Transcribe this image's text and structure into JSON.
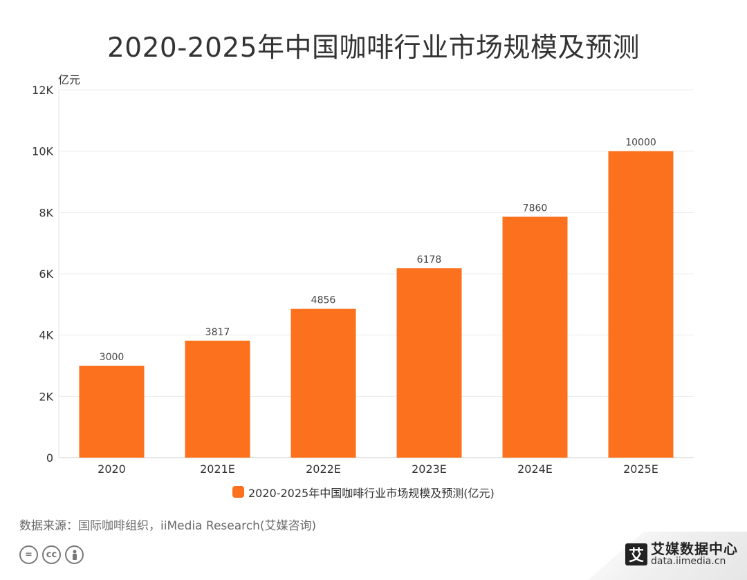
{
  "page": {
    "title": "2020-2025年中国咖啡行业市场规模及预测",
    "source": "数据来源：国际咖啡组织，iiMedia Research(艾媒咨询)",
    "brand_logo_char": "艾",
    "brand_name": "艾媒数据中心",
    "brand_url": "data.iimedia.cn",
    "license_icons": [
      "equal-icon",
      "cc-icon",
      "person-icon"
    ]
  },
  "chart_data": {
    "type": "bar",
    "title": "2020-2025年中国咖啡行业市场规模及预测",
    "y_unit_label": "亿元",
    "categories": [
      "2020",
      "2021E",
      "2022E",
      "2023E",
      "2024E",
      "2025E"
    ],
    "series": [
      {
        "name": "2020-2025年中国咖啡行业市场规模及预测(亿元)",
        "values": [
          3000,
          3817,
          4856,
          6178,
          7860,
          10000
        ],
        "color": "#fc711d"
      }
    ],
    "ylim": [
      0,
      12000
    ],
    "y_ticks": [
      0,
      2000,
      4000,
      6000,
      8000,
      10000,
      12000
    ],
    "y_tick_labels": [
      "0",
      "2K",
      "4K",
      "6K",
      "8K",
      "10K",
      "12K"
    ],
    "grid": true,
    "legend_position": "bottom-center",
    "data_labels": true
  }
}
